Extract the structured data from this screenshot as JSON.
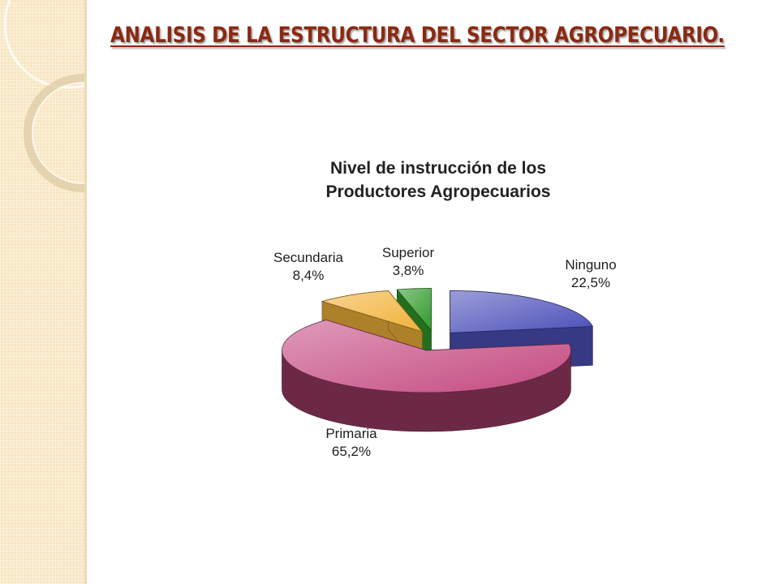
{
  "slide": {
    "title": "ANALISIS  DE LA ESTRUCTURA DEL SECTOR AGROPECUARIO."
  },
  "colors": {
    "title": "#8a2a12",
    "side_panel": "#f7e6c2"
  },
  "chart_data": {
    "type": "pie",
    "title_lines": [
      "Nivel de instrucción de los",
      "Productores Agropecuarios"
    ],
    "style": "3d-exploded",
    "slices": [
      {
        "label": "Ninguno",
        "value": 22.5,
        "value_label": "22,5%",
        "color": "#4b4fb8"
      },
      {
        "label": "Primaria",
        "value": 65.2,
        "value_label": "65,2%",
        "color": "#c44a80"
      },
      {
        "label": "Secundaria",
        "value": 8.4,
        "value_label": "8,4%",
        "color": "#f0b23a"
      },
      {
        "label": "Superior",
        "value": 3.8,
        "value_label": "3,8%",
        "color": "#2f9a2a"
      }
    ]
  }
}
